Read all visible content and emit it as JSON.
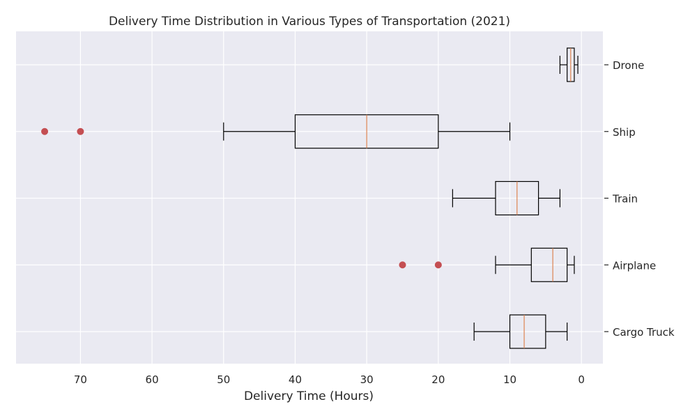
{
  "chart_data": {
    "type": "boxplot",
    "orientation": "horizontal",
    "title": "Delivery Time Distribution in Various Types of Transportation (2021)",
    "xlabel": "Delivery Time (Hours)",
    "ylabel": "",
    "x_axis_inverted": true,
    "xlim": [
      79,
      -3
    ],
    "x_ticks": [
      70,
      60,
      50,
      40,
      30,
      20,
      10,
      0
    ],
    "categories": [
      "Cargo Truck",
      "Airplane",
      "Train",
      "Ship",
      "Drone"
    ],
    "boxes": [
      {
        "category": "Cargo Truck",
        "whisker_low": 2,
        "q1": 5,
        "median": 8,
        "q3": 10,
        "whisker_high": 15,
        "outliers": []
      },
      {
        "category": "Airplane",
        "whisker_low": 1,
        "q1": 2,
        "median": 4,
        "q3": 7,
        "whisker_high": 12,
        "outliers": [
          20,
          25
        ]
      },
      {
        "category": "Train",
        "whisker_low": 3,
        "q1": 6,
        "median": 9,
        "q3": 12,
        "whisker_high": 18,
        "outliers": []
      },
      {
        "category": "Ship",
        "whisker_low": 10,
        "q1": 20,
        "median": 30,
        "q3": 40,
        "whisker_high": 50,
        "outliers": [
          70,
          75
        ]
      },
      {
        "category": "Drone",
        "whisker_low": 0.5,
        "q1": 1,
        "median": 1.5,
        "q3": 2,
        "whisker_high": 3,
        "outliers": []
      }
    ],
    "grid": true,
    "colors": {
      "background": "#eaeaf2",
      "grid": "#ffffff",
      "box": "#000000",
      "median": "#dd8452",
      "outlier": "#c44e52",
      "text": "#262626"
    }
  }
}
